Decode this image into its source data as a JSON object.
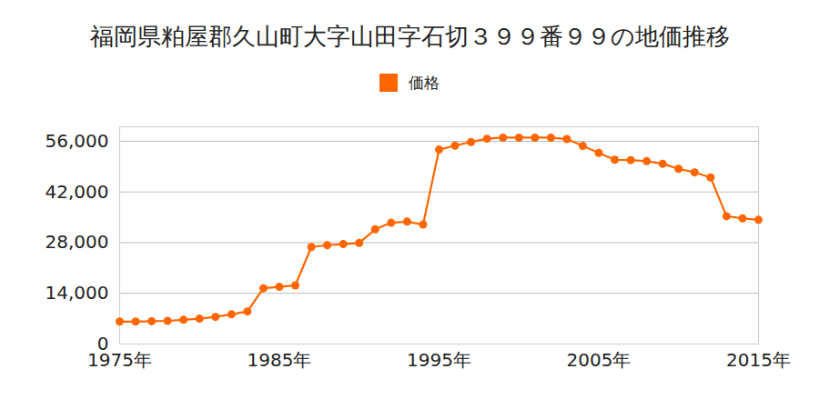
{
  "chart_data": {
    "type": "line",
    "title": "福岡県粕屋郡久山町大字山田字石切３９９番９９の地価推移",
    "x": [
      1975,
      1976,
      1977,
      1978,
      1979,
      1980,
      1981,
      1982,
      1983,
      1984,
      1985,
      1986,
      1987,
      1988,
      1989,
      1990,
      1991,
      1992,
      1993,
      1994,
      1995,
      1996,
      1997,
      1998,
      1999,
      2000,
      2001,
      2002,
      2003,
      2004,
      2005,
      2006,
      2007,
      2008,
      2009,
      2010,
      2011,
      2012,
      2013,
      2014,
      2015
    ],
    "series": [
      {
        "name": "価格",
        "color": "#ff6600",
        "marker": "circle",
        "values": [
          6200,
          6200,
          6300,
          6400,
          6700,
          7000,
          7500,
          8200,
          9000,
          15400,
          15800,
          16200,
          26800,
          27300,
          27600,
          27900,
          31700,
          33500,
          33800,
          33000,
          53700,
          54800,
          55800,
          56700,
          57000,
          57000,
          57000,
          57000,
          56600,
          54700,
          52800,
          50900,
          50800,
          50500,
          49800,
          48400,
          47400,
          46000,
          35300,
          34700,
          34300
        ]
      }
    ],
    "xlim": [
      1975,
      2015
    ],
    "xticks": [
      {
        "value": 1975,
        "label": "1975年"
      },
      {
        "value": 1985,
        "label": "1985年"
      },
      {
        "value": 1995,
        "label": "1995年"
      },
      {
        "value": 2005,
        "label": "2005年"
      },
      {
        "value": 2015,
        "label": "2015年"
      }
    ],
    "ylim": [
      0,
      60000
    ],
    "yticks": [
      0,
      {
        "value": 14000,
        "label": "14,000"
      },
      {
        "value": 28000,
        "label": "28,000"
      },
      {
        "value": 42000,
        "label": "42,000"
      },
      {
        "value": 56000,
        "label": "56,000"
      }
    ],
    "grid": true,
    "legend": "top"
  }
}
